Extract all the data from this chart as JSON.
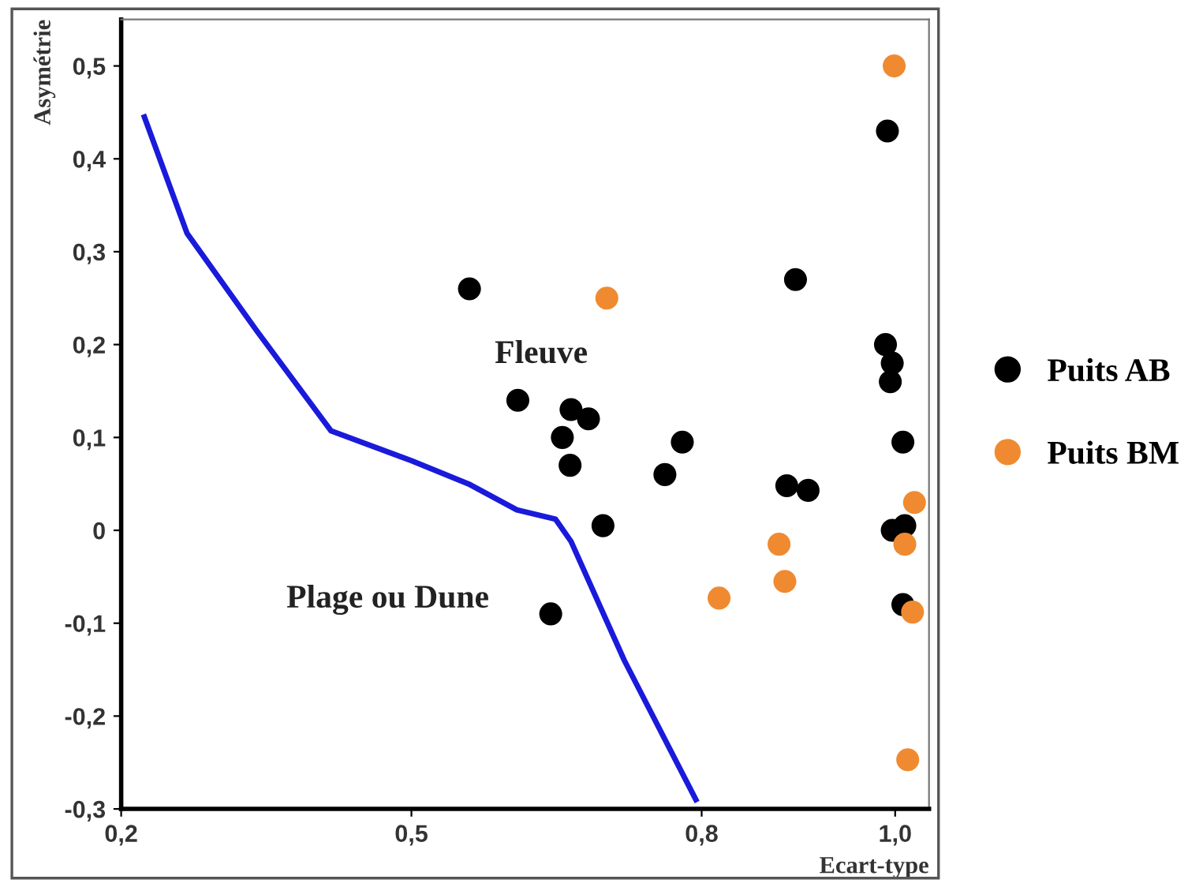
{
  "chart_data": {
    "type": "scatter",
    "xlabel": "Ecart-type",
    "ylabel": "Asymétrie",
    "xlim": [
      0.2,
      1.035
    ],
    "ylim": [
      -0.3,
      0.55
    ],
    "xticks": [
      {
        "value": 0.2,
        "label": "0,2"
      },
      {
        "value": 0.5,
        "label": "0,5"
      },
      {
        "value": 0.8,
        "label": "0,8"
      },
      {
        "value": 1.0,
        "label": "1,0"
      }
    ],
    "yticks": [
      {
        "value": -0.3,
        "label": "-0,3"
      },
      {
        "value": -0.2,
        "label": "-0,2"
      },
      {
        "value": -0.1,
        "label": "-0,1"
      },
      0,
      {
        "value": 0.1,
        "label": "0,1"
      },
      {
        "value": 0.2,
        "label": "0,2"
      },
      {
        "value": 0.3,
        "label": "0,3"
      },
      {
        "value": 0.4,
        "label": "0,4"
      },
      {
        "value": 0.5,
        "label": "0,5"
      }
    ],
    "grid": false,
    "legend": "right",
    "marker": "circle",
    "series": [
      {
        "type": "line",
        "color": "#1a1adb",
        "marker": "none",
        "line_style": "solid",
        "x": [
          0.224,
          0.268,
          0.34,
          0.417,
          0.5,
          0.559,
          0.609,
          0.649,
          0.665,
          0.72,
          0.794
        ],
        "values": [
          0.445,
          0.32,
          0.215,
          0.107,
          0.075,
          0.05,
          0.022,
          0.012,
          -0.012,
          -0.14,
          -0.29
        ]
      },
      {
        "name": "Puits AB",
        "color": "#000000",
        "x": [
          0.56,
          0.61,
          0.665,
          0.683,
          0.656,
          0.664,
          0.698,
          0.644,
          0.78,
          0.762,
          0.897,
          0.992,
          0.99,
          0.997,
          0.995,
          1.008,
          0.888,
          0.91,
          0.997,
          1.01,
          1.008
        ],
        "values": [
          0.26,
          0.14,
          0.13,
          0.12,
          0.1,
          0.07,
          0.005,
          -0.09,
          0.095,
          0.06,
          0.27,
          0.43,
          0.2,
          0.18,
          0.16,
          0.095,
          0.048,
          0.043,
          0.0,
          0.005,
          -0.08
        ]
      },
      {
        "name": "Puits BM",
        "color": "#f08a30",
        "x": [
          0.999,
          0.702,
          1.02,
          1.01,
          0.88,
          0.886,
          0.818,
          1.018,
          1.013
        ],
        "values": [
          0.5,
          0.25,
          0.03,
          -0.015,
          -0.015,
          -0.055,
          -0.073,
          -0.088,
          -0.247
        ]
      }
    ],
    "annotations": [
      "Fleuve",
      "Plage ou Dune"
    ]
  }
}
